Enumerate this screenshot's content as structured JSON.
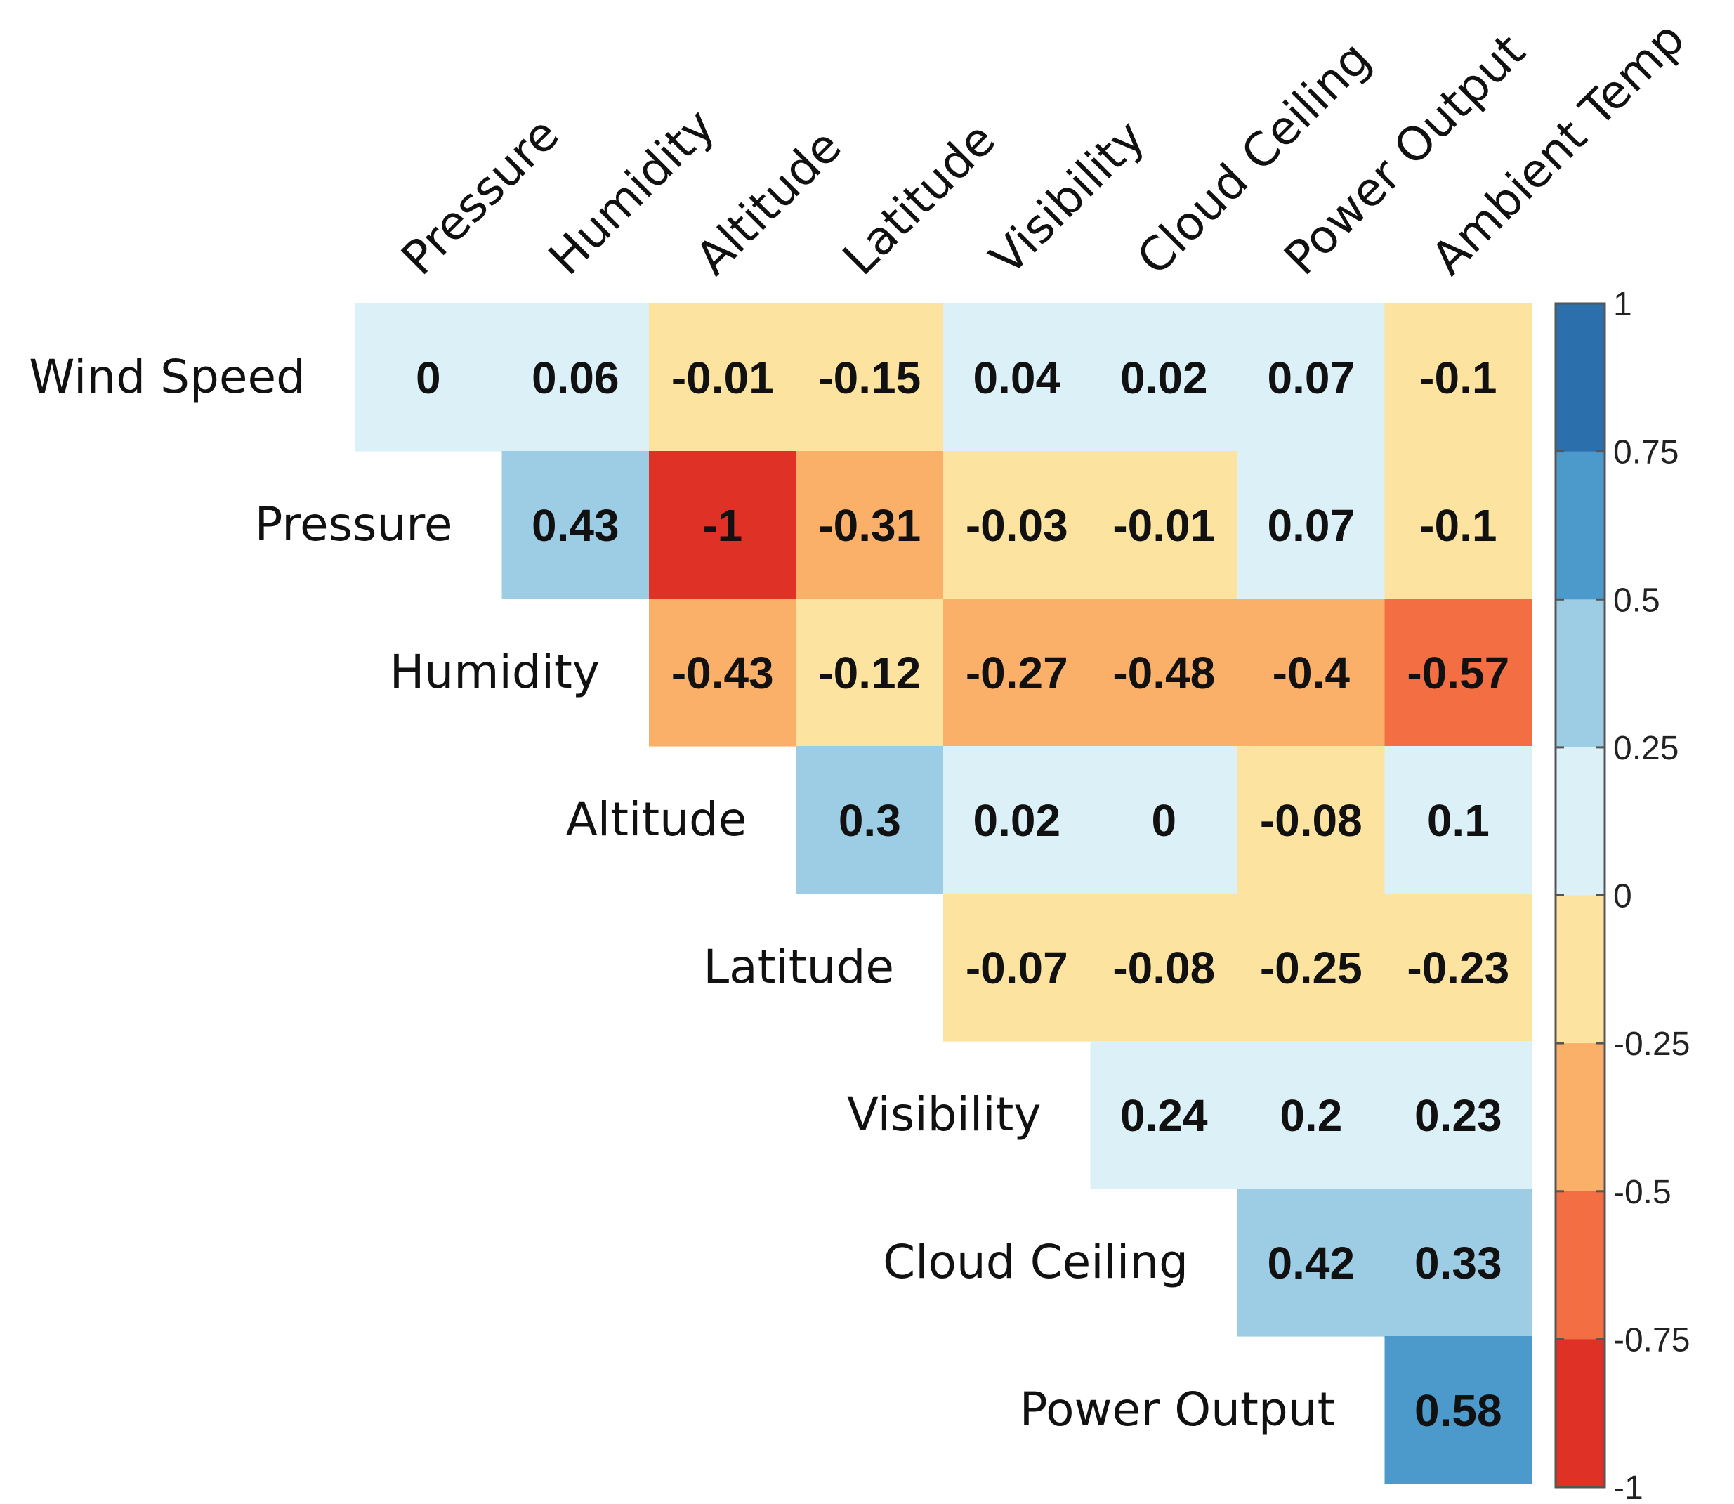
{
  "chart_data": {
    "type": "heatmap",
    "title": "",
    "columns": [
      "Pressure",
      "Humidity",
      "Altitude",
      "Latitude",
      "Visibility",
      "Cloud Ceiling",
      "Power Output",
      "Ambient Temp"
    ],
    "rows": [
      "Wind Speed",
      "Pressure",
      "Humidity",
      "Altitude",
      "Latitude",
      "Visibility",
      "Cloud Ceiling",
      "Power Output"
    ],
    "values": [
      [
        0,
        0.06,
        -0.01,
        -0.15,
        0.04,
        0.02,
        0.07,
        -0.1
      ],
      [
        null,
        0.43,
        -1,
        -0.31,
        -0.03,
        -0.01,
        0.07,
        -0.1
      ],
      [
        null,
        null,
        -0.43,
        -0.12,
        -0.27,
        -0.48,
        -0.4,
        -0.57
      ],
      [
        null,
        null,
        null,
        0.3,
        0.02,
        0,
        -0.08,
        0.1
      ],
      [
        null,
        null,
        null,
        null,
        -0.07,
        -0.08,
        -0.25,
        -0.23
      ],
      [
        null,
        null,
        null,
        null,
        null,
        0.24,
        0.2,
        0.23
      ],
      [
        null,
        null,
        null,
        null,
        null,
        null,
        0.42,
        0.33
      ],
      [
        null,
        null,
        null,
        null,
        null,
        null,
        null,
        0.58
      ]
    ],
    "value_labels": [
      [
        "0",
        "0.06",
        "-0.01",
        "-0.15",
        "0.04",
        "0.02",
        "0.07",
        "-0.1"
      ],
      [
        "",
        "0.43",
        "-1",
        "-0.31",
        "-0.03",
        "-0.01",
        "0.07",
        "-0.1"
      ],
      [
        "",
        "",
        "-0.43",
        "-0.12",
        "-0.27",
        "-0.48",
        "-0.4",
        "-0.57"
      ],
      [
        "",
        "",
        "",
        "0.3",
        "0.02",
        "0",
        "-0.08",
        "0.1"
      ],
      [
        "",
        "",
        "",
        "",
        "-0.07",
        "-0.08",
        "-0.25",
        "-0.23"
      ],
      [
        "",
        "",
        "",
        "",
        "",
        "0.24",
        "0.2",
        "0.23"
      ],
      [
        "",
        "",
        "",
        "",
        "",
        "",
        "0.42",
        "0.33"
      ],
      [
        "",
        "",
        "",
        "",
        "",
        "",
        "",
        "0.58"
      ]
    ],
    "colorbar": {
      "range": [
        -1,
        1
      ],
      "ticks": [
        1,
        0.75,
        0.5,
        0.25,
        0,
        -0.25,
        -0.5,
        -0.75,
        -1
      ],
      "tick_labels": [
        "1",
        "0.75",
        "0.5",
        "0.25",
        "0",
        "-0.25",
        "-0.5",
        "-0.75",
        "-1"
      ],
      "bins": [
        {
          "from": 0.75,
          "to": 1,
          "color": "#2c6fad"
        },
        {
          "from": 0.5,
          "to": 0.75,
          "color": "#4c9acc"
        },
        {
          "from": 0.25,
          "to": 0.5,
          "color": "#9ccde4"
        },
        {
          "from": 0,
          "to": 0.25,
          "color": "#dcf0f7"
        },
        {
          "from": -0.25,
          "to": 0,
          "color": "#fde3a0"
        },
        {
          "from": -0.5,
          "to": -0.25,
          "color": "#fbb06a"
        },
        {
          "from": -0.75,
          "to": -0.5,
          "color": "#f36e43"
        },
        {
          "from": -1,
          "to": -0.75,
          "color": "#e03126"
        }
      ]
    }
  }
}
